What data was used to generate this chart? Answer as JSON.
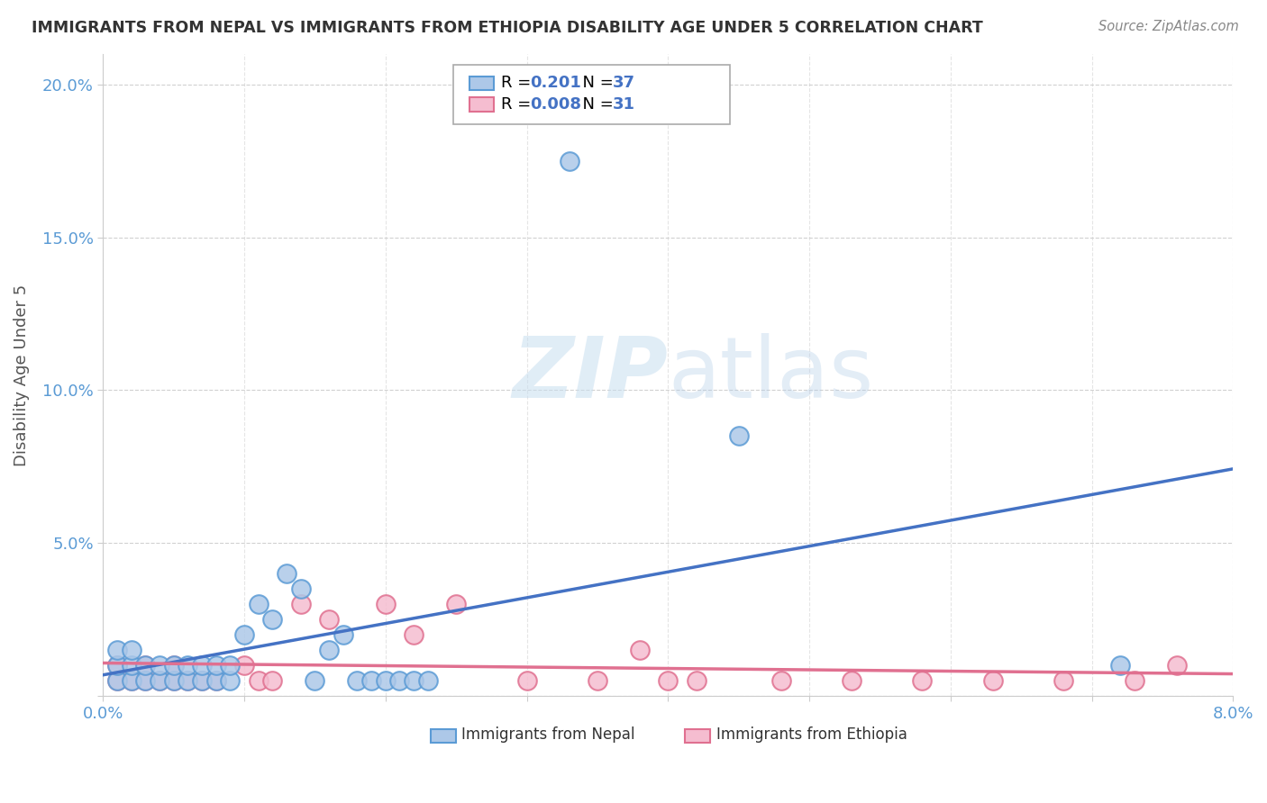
{
  "title": "IMMIGRANTS FROM NEPAL VS IMMIGRANTS FROM ETHIOPIA DISABILITY AGE UNDER 5 CORRELATION CHART",
  "source": "Source: ZipAtlas.com",
  "ylabel": "Disability Age Under 5",
  "xlim": [
    0.0,
    0.08
  ],
  "ylim": [
    0.0,
    0.21
  ],
  "yticks": [
    0.0,
    0.05,
    0.1,
    0.15,
    0.2
  ],
  "ytick_labels": [
    "",
    "5.0%",
    "10.0%",
    "15.0%",
    "20.0%"
  ],
  "xticks": [
    0.0,
    0.01,
    0.02,
    0.03,
    0.04,
    0.05,
    0.06,
    0.07,
    0.08
  ],
  "xtick_labels": [
    "0.0%",
    "",
    "",
    "",
    "",
    "",
    "",
    "",
    "8.0%"
  ],
  "nepal_R": 0.201,
  "nepal_N": 37,
  "ethiopia_R": 0.008,
  "ethiopia_N": 31,
  "nepal_color": "#adc8e8",
  "nepal_edge_color": "#5b9bd5",
  "ethiopia_color": "#f5bdd0",
  "ethiopia_edge_color": "#e07090",
  "nepal_line_color": "#4472c4",
  "ethiopia_line_color": "#e07090",
  "watermark_zip": "ZIP",
  "watermark_atlas": "atlas",
  "nepal_x": [
    0.001,
    0.001,
    0.001,
    0.002,
    0.002,
    0.002,
    0.003,
    0.003,
    0.004,
    0.004,
    0.005,
    0.005,
    0.006,
    0.006,
    0.007,
    0.007,
    0.008,
    0.008,
    0.009,
    0.009,
    0.01,
    0.011,
    0.012,
    0.013,
    0.014,
    0.015,
    0.016,
    0.017,
    0.018,
    0.019,
    0.02,
    0.021,
    0.022,
    0.023,
    0.033,
    0.045,
    0.072
  ],
  "nepal_y": [
    0.005,
    0.01,
    0.015,
    0.005,
    0.01,
    0.015,
    0.005,
    0.01,
    0.005,
    0.01,
    0.005,
    0.01,
    0.005,
    0.01,
    0.005,
    0.01,
    0.005,
    0.01,
    0.005,
    0.01,
    0.02,
    0.03,
    0.025,
    0.04,
    0.035,
    0.005,
    0.015,
    0.02,
    0.005,
    0.005,
    0.005,
    0.005,
    0.005,
    0.005,
    0.175,
    0.085,
    0.01
  ],
  "ethiopia_x": [
    0.001,
    0.001,
    0.002,
    0.003,
    0.003,
    0.004,
    0.005,
    0.005,
    0.006,
    0.007,
    0.008,
    0.01,
    0.011,
    0.012,
    0.014,
    0.016,
    0.02,
    0.022,
    0.025,
    0.03,
    0.035,
    0.038,
    0.04,
    0.042,
    0.048,
    0.053,
    0.058,
    0.063,
    0.068,
    0.073,
    0.076
  ],
  "ethiopia_y": [
    0.005,
    0.01,
    0.005,
    0.005,
    0.01,
    0.005,
    0.005,
    0.01,
    0.005,
    0.005,
    0.005,
    0.01,
    0.005,
    0.005,
    0.03,
    0.025,
    0.03,
    0.02,
    0.03,
    0.005,
    0.005,
    0.015,
    0.005,
    0.005,
    0.005,
    0.005,
    0.005,
    0.005,
    0.005,
    0.005,
    0.01
  ]
}
